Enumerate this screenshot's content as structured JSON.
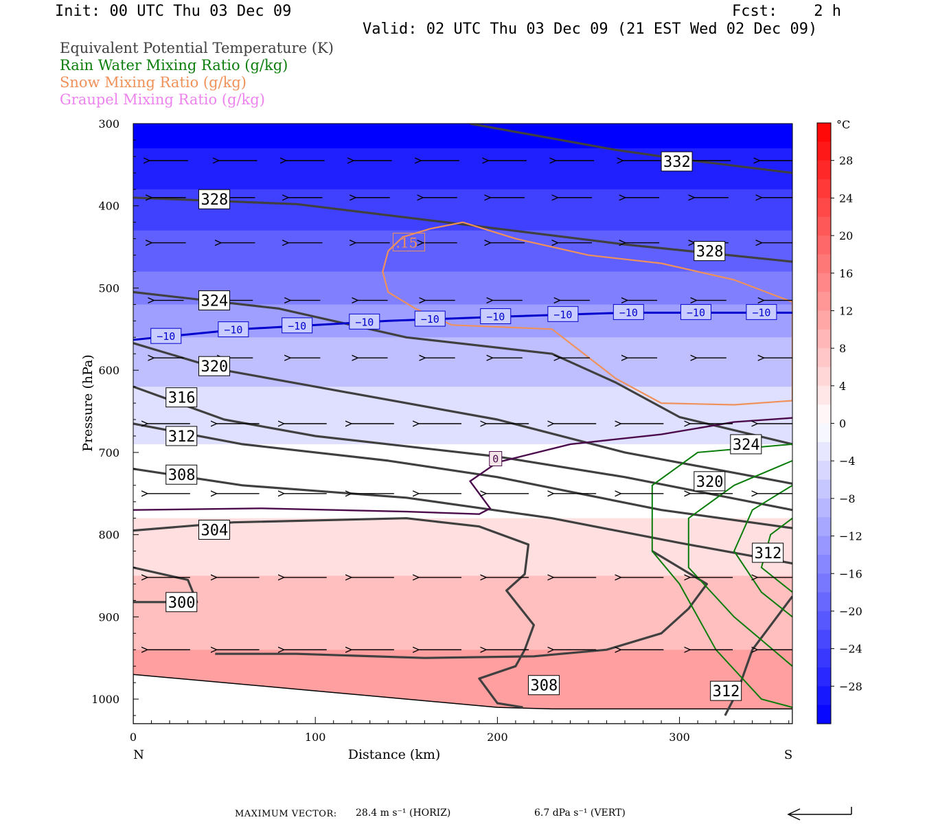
{
  "header": {
    "init": "Init: 00 UTC Thu 03 Dec 09",
    "fcst": "Fcst:    2 h",
    "valid": "Valid: 02 UTC Thu 03 Dec 09 (21 EST Wed 02 Dec 09)"
  },
  "legend": [
    {
      "label": "Equivalent Potential Temperature (K)",
      "color": "#404040"
    },
    {
      "label": "Rain Water Mixing Ratio (g/kg)",
      "color": "#0a7d0a"
    },
    {
      "label": "Snow Mixing Ratio (g/kg)",
      "color": "#f0915a"
    },
    {
      "label": "Graupel Mixing Ratio (g/kg)",
      "color": "#ee82ee"
    }
  ],
  "footer": {
    "max_vector_label": "MAXIMUM VECTOR:",
    "horiz": "28.4 m s⁻¹ (HORIZ)",
    "vert": "6.7 dPa s⁻¹ (VERT)"
  },
  "chart_data": {
    "type": "cross-section contour",
    "xlabel": "Distance (km)",
    "ylabel": "Pressure (hPa)",
    "xlim": [
      0,
      362
    ],
    "ylim": [
      1030,
      300
    ],
    "x_ticks": [
      0,
      100,
      200,
      300
    ],
    "y_ticks": [
      300,
      400,
      500,
      600,
      700,
      800,
      900,
      1000
    ],
    "x_end_labels": [
      "N",
      "S"
    ],
    "colorbar": {
      "unit": "°C",
      "ticks": [
        28,
        24,
        20,
        16,
        12,
        8,
        4,
        0,
        -4,
        -8,
        -12,
        -16,
        -20,
        -24,
        -28
      ],
      "range": [
        -32,
        32
      ]
    },
    "temperature_field": [
      {
        "p": 300,
        "t": -32
      },
      {
        "p": 400,
        "t": -24
      },
      {
        "p": 500,
        "t": -16
      },
      {
        "p": 560,
        "t": -10
      },
      {
        "p": 620,
        "t": -6
      },
      {
        "p": 700,
        "t": -1
      },
      {
        "p": 760,
        "t": 1
      },
      {
        "p": 800,
        "t": 4
      },
      {
        "p": 900,
        "t": 8
      },
      {
        "p": 1000,
        "t": 13
      }
    ],
    "theta_e_contours": [
      {
        "label": "332",
        "points": [
          [
            185,
            300
          ],
          [
            230,
            318
          ],
          [
            265,
            332
          ],
          [
            300,
            343
          ],
          [
            362,
            360
          ]
        ],
        "label_at": [
          290,
          346
        ]
      },
      {
        "label": "328",
        "points": [
          [
            0,
            390
          ],
          [
            90,
            398
          ],
          [
            190,
            425
          ],
          [
            270,
            447
          ],
          [
            362,
            468
          ]
        ],
        "label_at": [
          36,
          392
        ]
      },
      {
        "label": "328",
        "points": [],
        "label_at": [
          308,
          455
        ]
      },
      {
        "label": "324",
        "points": [
          [
            0,
            505
          ],
          [
            80,
            525
          ],
          [
            150,
            560
          ],
          [
            230,
            580
          ],
          [
            265,
            615
          ],
          [
            300,
            657
          ],
          [
            362,
            690
          ]
        ],
        "label_at": [
          36,
          515
        ]
      },
      {
        "label": "324",
        "points": [],
        "label_at": [
          328,
          690
        ]
      },
      {
        "label": "320",
        "points": [
          [
            0,
            567
          ],
          [
            50,
            600
          ],
          [
            100,
            620
          ],
          [
            200,
            660
          ],
          [
            270,
            700
          ],
          [
            362,
            738
          ]
        ],
        "label_at": [
          36,
          595
        ]
      },
      {
        "label": "320",
        "points": [],
        "label_at": [
          308,
          735
        ]
      },
      {
        "label": "316",
        "points": [
          [
            0,
            620
          ],
          [
            50,
            660
          ],
          [
            100,
            680
          ],
          [
            200,
            705
          ],
          [
            270,
            730
          ],
          [
            362,
            770
          ]
        ],
        "label_at": [
          18,
          633
        ]
      },
      {
        "label": "312",
        "points": [
          [
            0,
            665
          ],
          [
            60,
            690
          ],
          [
            140,
            710
          ],
          [
            200,
            730
          ],
          [
            290,
            770
          ],
          [
            362,
            792
          ]
        ],
        "label_at": [
          18,
          680
        ]
      },
      {
        "label": "312",
        "points": [],
        "label_at": [
          340,
          822
        ]
      },
      {
        "label": "308",
        "points": [
          [
            0,
            720
          ],
          [
            60,
            740
          ],
          [
            150,
            755
          ],
          [
            230,
            780
          ],
          [
            300,
            810
          ],
          [
            362,
            835
          ]
        ],
        "label_at": [
          18,
          727
        ]
      },
      {
        "label": "304",
        "points": [
          [
            0,
            795
          ],
          [
            55,
            785
          ],
          [
            150,
            780
          ],
          [
            190,
            790
          ],
          [
            217,
            812
          ],
          [
            215,
            848
          ],
          [
            205,
            868
          ],
          [
            220,
            910
          ],
          [
            215,
            940
          ],
          [
            210,
            960
          ],
          [
            190,
            975
          ],
          [
            200,
            1005
          ],
          [
            214,
            1010
          ]
        ],
        "label_at": [
          36,
          794
        ]
      },
      {
        "label": "300",
        "points": [
          [
            0,
            840
          ],
          [
            30,
            855
          ],
          [
            35,
            882
          ],
          [
            0,
            882
          ]
        ],
        "label_at": [
          18,
          882
        ]
      },
      {
        "label": "308",
        "points": [
          [
            45,
            945
          ],
          [
            90,
            945
          ],
          [
            160,
            950
          ],
          [
            220,
            948
          ],
          [
            260,
            940
          ],
          [
            290,
            920
          ],
          [
            305,
            890
          ],
          [
            315,
            860
          ],
          [
            300,
            840
          ],
          [
            285,
            820
          ]
        ],
        "label_at": [
          217,
          983
        ]
      },
      {
        "label": "312",
        "points": [
          [
            325,
            1020
          ],
          [
            332,
            990
          ],
          [
            340,
            940
          ],
          [
            362,
            875
          ]
        ],
        "label_at": [
          317,
          990
        ]
      }
    ],
    "isotherm_minus10": {
      "label": "−10",
      "points": [
        [
          0,
          563
        ],
        [
          60,
          550
        ],
        [
          140,
          540
        ],
        [
          200,
          535
        ],
        [
          270,
          530
        ],
        [
          362,
          530
        ]
      ],
      "label_positions_x": [
        18,
        55,
        90,
        127,
        163,
        199,
        236,
        272,
        309,
        345
      ]
    },
    "isotherm_0": {
      "label": "0",
      "points": [
        [
          0,
          770
        ],
        [
          70,
          768
        ],
        [
          150,
          772
        ],
        [
          190,
          775
        ],
        [
          196,
          768
        ],
        [
          185,
          735
        ],
        [
          200,
          712
        ],
        [
          240,
          690
        ],
        [
          290,
          678
        ],
        [
          330,
          663
        ],
        [
          362,
          658
        ]
      ],
      "label_at": [
        199,
        708
      ]
    },
    "snow_contour": {
      "label": ".15",
      "points": [
        [
          140,
          455
        ],
        [
          148,
          438
        ],
        [
          163,
          428
        ],
        [
          181,
          420
        ],
        [
          210,
          440
        ],
        [
          250,
          460
        ],
        [
          290,
          470
        ],
        [
          330,
          490
        ],
        [
          362,
          517
        ],
        [
          362,
          637
        ],
        [
          330,
          642
        ],
        [
          290,
          640
        ],
        [
          265,
          610
        ],
        [
          230,
          550
        ],
        [
          175,
          545
        ],
        [
          155,
          525
        ],
        [
          140,
          505
        ],
        [
          137,
          480
        ],
        [
          140,
          455
        ]
      ],
      "label_at": [
        145,
        445
      ]
    },
    "rain_contours": [
      {
        "points": [
          [
            362,
            690
          ],
          [
            310,
            700
          ],
          [
            285,
            740
          ],
          [
            285,
            820
          ],
          [
            300,
            860
          ],
          [
            320,
            940
          ],
          [
            345,
            1000
          ],
          [
            362,
            1010
          ]
        ]
      },
      {
        "points": [
          [
            362,
            710
          ],
          [
            330,
            740
          ],
          [
            305,
            780
          ],
          [
            305,
            840
          ],
          [
            330,
            900
          ],
          [
            362,
            960
          ]
        ]
      },
      {
        "points": [
          [
            362,
            740
          ],
          [
            340,
            770
          ],
          [
            330,
            820
          ],
          [
            345,
            870
          ],
          [
            362,
            900
          ]
        ]
      },
      {
        "points": [
          [
            362,
            780
          ],
          [
            350,
            800
          ],
          [
            345,
            840
          ],
          [
            362,
            870
          ]
        ]
      }
    ],
    "wind_arrows": {
      "rows_hpa": [
        345,
        390,
        445,
        515,
        585,
        665,
        750,
        852,
        940
      ],
      "columns_km": [
        12,
        50,
        87,
        124,
        161,
        198,
        235,
        272,
        310,
        347
      ],
      "relative_lengths": [
        0.9,
        0.8,
        0.8,
        0.7,
        0.7,
        1.0,
        1.0,
        1.0,
        1.0
      ]
    },
    "terrain_hpa": [
      [
        0,
        970
      ],
      [
        100,
        990
      ],
      [
        200,
        1010
      ],
      [
        230,
        1012
      ],
      [
        362,
        1012
      ]
    ]
  }
}
